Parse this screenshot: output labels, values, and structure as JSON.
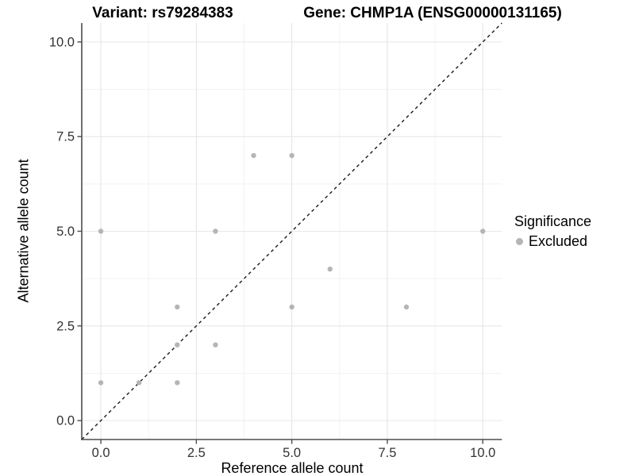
{
  "titles": {
    "variant": "Variant: rs79284383",
    "gene": "Gene: CHMP1A (ENSG00000131165)"
  },
  "chart_data": {
    "type": "scatter",
    "title": "Variant: rs79284383 — Gene: CHMP1A (ENSG00000131165)",
    "xlabel": "Reference allele count",
    "ylabel": "Alternative allele count",
    "xlim": [
      -0.5,
      10.5
    ],
    "ylim": [
      -0.5,
      10.5
    ],
    "grid": "on",
    "x_ticks": {
      "values": [
        0,
        2.5,
        5,
        7.5,
        10
      ],
      "labels": [
        "0.0",
        "2.5",
        "5.0",
        "7.5",
        "10.0"
      ]
    },
    "y_ticks": {
      "values": [
        0,
        2.5,
        5,
        7.5,
        10
      ],
      "labels": [
        "0.0",
        "2.5",
        "5.0",
        "7.5",
        "10.0"
      ]
    },
    "minor_gridlines": [
      1.25,
      3.75,
      6.25,
      8.75
    ],
    "identity_line": {
      "style": "dashed",
      "equation": "y = x",
      "from": -0.5,
      "to": 10.5,
      "color": "#1a1a1a"
    },
    "series": [
      {
        "name": "Excluded",
        "color": "#b5b5b5",
        "points": [
          [
            0,
            1
          ],
          [
            1,
            1
          ],
          [
            2,
            1
          ],
          [
            2,
            2
          ],
          [
            3,
            2
          ],
          [
            2,
            3
          ],
          [
            5,
            3
          ],
          [
            8,
            3
          ],
          [
            6,
            4
          ],
          [
            0,
            5
          ],
          [
            3,
            5
          ],
          [
            10,
            5
          ],
          [
            4,
            7
          ],
          [
            5,
            7
          ]
        ]
      }
    ],
    "legend": {
      "title": "Significance",
      "position": "right",
      "entries": [
        {
          "label": "Excluded",
          "color": "#b5b5b5",
          "marker": "circle"
        }
      ]
    }
  },
  "colors": {
    "point": "#b5b5b5",
    "grid_major": "#e6e6e6",
    "grid_minor": "#f2f2f2",
    "axis_line": "#4d4d4d",
    "tick_label": "#333333",
    "title_text": "#000000",
    "identity_line": "#1a1a1a"
  }
}
